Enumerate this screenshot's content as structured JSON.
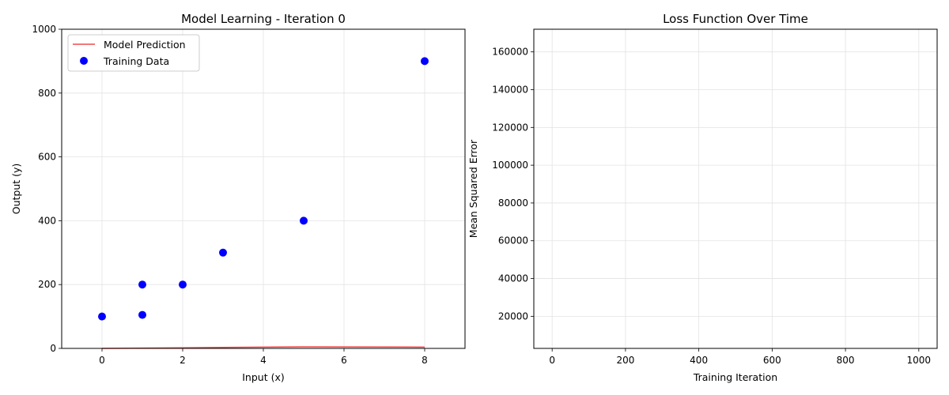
{
  "chart_data": [
    {
      "type": "scatter",
      "title": "Model Learning - Iteration 0",
      "xlabel": "Input (x)",
      "ylabel": "Output (y)",
      "xlim": [
        -1,
        9
      ],
      "ylim": [
        0,
        1000
      ],
      "x_ticks": [
        0,
        2,
        4,
        6,
        8
      ],
      "y_ticks": [
        0,
        200,
        400,
        600,
        800,
        1000
      ],
      "grid": true,
      "legend_placement": "top-left",
      "series": [
        {
          "name": "Model Prediction",
          "kind": "line",
          "color": "#f04848",
          "x": [
            0,
            1,
            1,
            2,
            3,
            5,
            8
          ],
          "y": [
            0,
            1,
            1,
            2,
            3,
            5,
            4
          ]
        },
        {
          "name": "Training Data",
          "kind": "scatter",
          "color": "#0000ff",
          "x": [
            0,
            1,
            1,
            2,
            3,
            5,
            8
          ],
          "y": [
            100,
            105,
            200,
            200,
            300,
            400,
            900
          ]
        }
      ]
    },
    {
      "type": "line",
      "title": "Loss Function Over Time",
      "xlabel": "Training Iteration",
      "ylabel": "Mean Squared Error",
      "xlim": [
        -50,
        1050
      ],
      "ylim": [
        3000,
        172000
      ],
      "x_ticks": [
        0,
        200,
        400,
        600,
        800,
        1000
      ],
      "y_ticks": [
        20000,
        40000,
        60000,
        80000,
        100000,
        120000,
        140000,
        160000
      ],
      "grid": true,
      "series": []
    }
  ]
}
